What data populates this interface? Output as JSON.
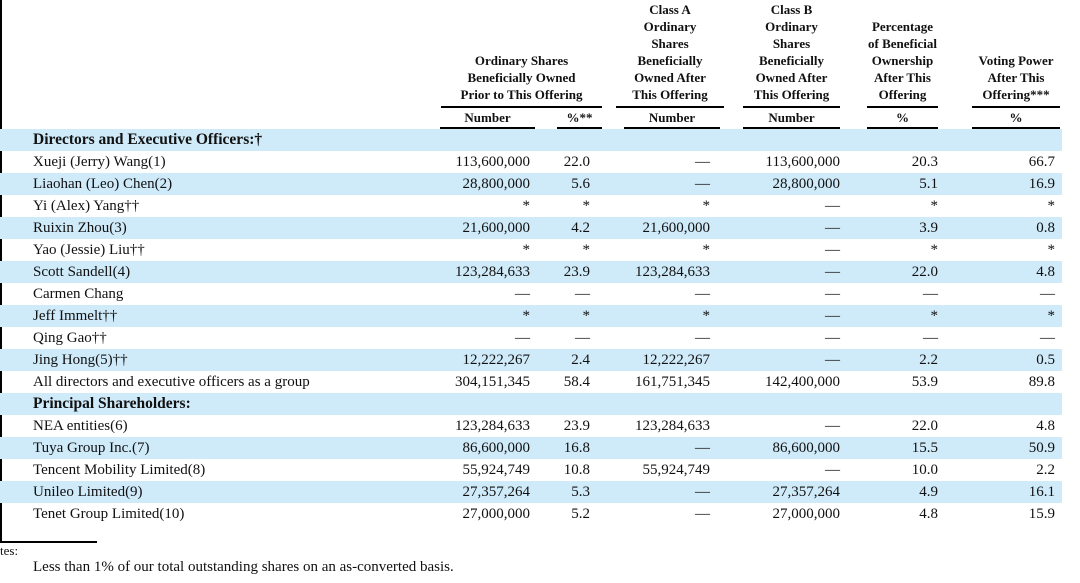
{
  "colors": {
    "stripe": "#cfeaf9",
    "text": "#111111",
    "rule": "#000000"
  },
  "table": {
    "columns": [
      {
        "title": "Ordinary Shares\nBeneficially Owned\nPrior to This Offering",
        "subs": [
          "Number",
          "%**"
        ]
      },
      {
        "title": "Class A\nOrdinary\nShares\nBeneficially\nOwned After\nThis Offering",
        "subs": [
          "Number"
        ]
      },
      {
        "title": "Class B\nOrdinary\nShares\nBeneficially\nOwned After\nThis Offering",
        "subs": [
          "Number"
        ]
      },
      {
        "title": "Percentage\nof Beneficial\nOwnership\nAfter This\nOffering",
        "subs": [
          "%"
        ]
      },
      {
        "title": "Voting Power\nAfter This\nOffering***",
        "subs": [
          "%"
        ]
      }
    ],
    "rows": [
      {
        "label": "Directors and Executive Officers:†",
        "type": "section",
        "values": [
          "",
          "",
          "",
          "",
          "",
          ""
        ]
      },
      {
        "label": "Xueji (Jerry) Wang(1)",
        "type": "data",
        "values": [
          "113,600,000",
          "22.0",
          "—",
          "113,600,000",
          "20.3",
          "66.7"
        ]
      },
      {
        "label": "Liaohan (Leo) Chen(2)",
        "type": "data",
        "values": [
          "28,800,000",
          "5.6",
          "—",
          "28,800,000",
          "5.1",
          "16.9"
        ]
      },
      {
        "label": "Yi (Alex) Yang††",
        "type": "data",
        "values": [
          "*",
          "*",
          "*",
          "—",
          "*",
          "*"
        ]
      },
      {
        "label": "Ruixin Zhou(3)",
        "type": "data",
        "values": [
          "21,600,000",
          "4.2",
          "21,600,000",
          "—",
          "3.9",
          "0.8"
        ]
      },
      {
        "label": "Yao (Jessie) Liu††",
        "type": "data",
        "values": [
          "*",
          "*",
          "*",
          "—",
          "*",
          "*"
        ]
      },
      {
        "label": "Scott Sandell(4)",
        "type": "data",
        "values": [
          "123,284,633",
          "23.9",
          "123,284,633",
          "—",
          "22.0",
          "4.8"
        ]
      },
      {
        "label": "Carmen Chang",
        "type": "data",
        "values": [
          "—",
          "—",
          "—",
          "—",
          "—",
          "—"
        ]
      },
      {
        "label": "Jeff Immelt††",
        "type": "data",
        "values": [
          "*",
          "*",
          "*",
          "—",
          "*",
          "*"
        ]
      },
      {
        "label": "Qing Gao††",
        "type": "data",
        "values": [
          "—",
          "—",
          "—",
          "—",
          "—",
          "—"
        ]
      },
      {
        "label": "Jing Hong(5)††",
        "type": "data",
        "values": [
          "12,222,267",
          "2.4",
          "12,222,267",
          "—",
          "2.2",
          "0.5"
        ]
      },
      {
        "label": "All directors and executive officers as a group",
        "type": "data",
        "values": [
          "304,151,345",
          "58.4",
          "161,751,345",
          "142,400,000",
          "53.9",
          "89.8"
        ]
      },
      {
        "label": "Principal Shareholders:",
        "type": "section",
        "values": [
          "",
          "",
          "",
          "",
          "",
          ""
        ]
      },
      {
        "label": "NEA entities(6)",
        "type": "data",
        "values": [
          "123,284,633",
          "23.9",
          "123,284,633",
          "—",
          "22.0",
          "4.8"
        ]
      },
      {
        "label": "Tuya Group Inc.(7)",
        "type": "data",
        "values": [
          "86,600,000",
          "16.8",
          "—",
          "86,600,000",
          "15.5",
          "50.9"
        ]
      },
      {
        "label": "Tencent Mobility Limited(8)",
        "type": "data",
        "values": [
          "55,924,749",
          "10.8",
          "55,924,749",
          "—",
          "10.0",
          "2.2"
        ]
      },
      {
        "label": "Unileo Limited(9)",
        "type": "data",
        "values": [
          "27,357,264",
          "5.3",
          "—",
          "27,357,264",
          "4.9",
          "16.1"
        ]
      },
      {
        "label": "Tenet Group Limited(10)",
        "type": "data",
        "values": [
          "27,000,000",
          "5.2",
          "—",
          "27,000,000",
          "4.8",
          "15.9"
        ]
      }
    ]
  },
  "footnotes": {
    "partial_label": "tes:",
    "line1": "Less than 1% of our total outstanding shares on an as-converted basis."
  }
}
